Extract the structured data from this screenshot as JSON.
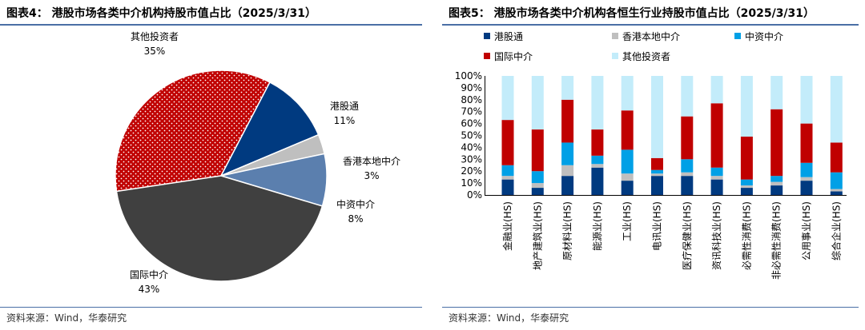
{
  "left": {
    "title": "图表4：  港股市场各类中介机构持股市值占比（2025/3/31）",
    "source": "资料来源：Wind，华泰研究",
    "chart_data": {
      "type": "pie",
      "slices": [
        {
          "name": "其他投资者",
          "value": 35,
          "label": "35%",
          "color": "#c00000",
          "pattern": "dots"
        },
        {
          "name": "港股通",
          "value": 11,
          "label": "11%",
          "color": "#003a80"
        },
        {
          "name": "香港本地中介",
          "value": 3,
          "label": "3%",
          "color": "#bfbfbf"
        },
        {
          "name": "中资中介",
          "value": 8,
          "label": "8%",
          "color": "#5b7fae"
        },
        {
          "name": "国际中介",
          "value": 43,
          "label": "43%",
          "color": "#404040"
        }
      ]
    }
  },
  "right": {
    "title": "图表5：  港股市场各类中介机构各恒生行业持股市值占比（2025/3/31）",
    "source": "资料来源：Wind，华泰研究",
    "chart_data": {
      "type": "bar",
      "stacked": true,
      "categories": [
        "金融业(HS)",
        "地产建筑业(HS)",
        "原材料业(HS)",
        "能源业(HS)",
        "工业(HS)",
        "电讯业(HS)",
        "医疗保健业(HS)",
        "资讯科技业(HS)",
        "必需性消费(HS)",
        "非必需性消费(HS)",
        "公用事业(HS)",
        "综合企业(HS)"
      ],
      "series": [
        {
          "name": "港股通",
          "color": "#003a80",
          "values": [
            13,
            6,
            16,
            23,
            12,
            16,
            16,
            13,
            6,
            8,
            12,
            3
          ]
        },
        {
          "name": "香港本地中介",
          "color": "#bfbfbf",
          "values": [
            3,
            4,
            9,
            3,
            6,
            2,
            3,
            3,
            2,
            3,
            3,
            2
          ]
        },
        {
          "name": "中资中介",
          "color": "#00a0e6",
          "values": [
            9,
            10,
            19,
            7,
            20,
            3,
            11,
            7,
            5,
            5,
            12,
            14
          ]
        },
        {
          "name": "国际中介",
          "color": "#c00000",
          "values": [
            38,
            35,
            36,
            22,
            33,
            10,
            36,
            54,
            36,
            56,
            33,
            25
          ]
        },
        {
          "name": "其他投资者",
          "color": "#c3ecfa",
          "values": [
            37,
            45,
            20,
            45,
            29,
            69,
            34,
            23,
            51,
            28,
            40,
            56
          ]
        }
      ],
      "y_ticks": [
        "0%",
        "10%",
        "20%",
        "30%",
        "40%",
        "50%",
        "60%",
        "70%",
        "80%",
        "90%",
        "100%"
      ],
      "ylim": [
        0,
        100
      ],
      "legend": "top"
    }
  }
}
